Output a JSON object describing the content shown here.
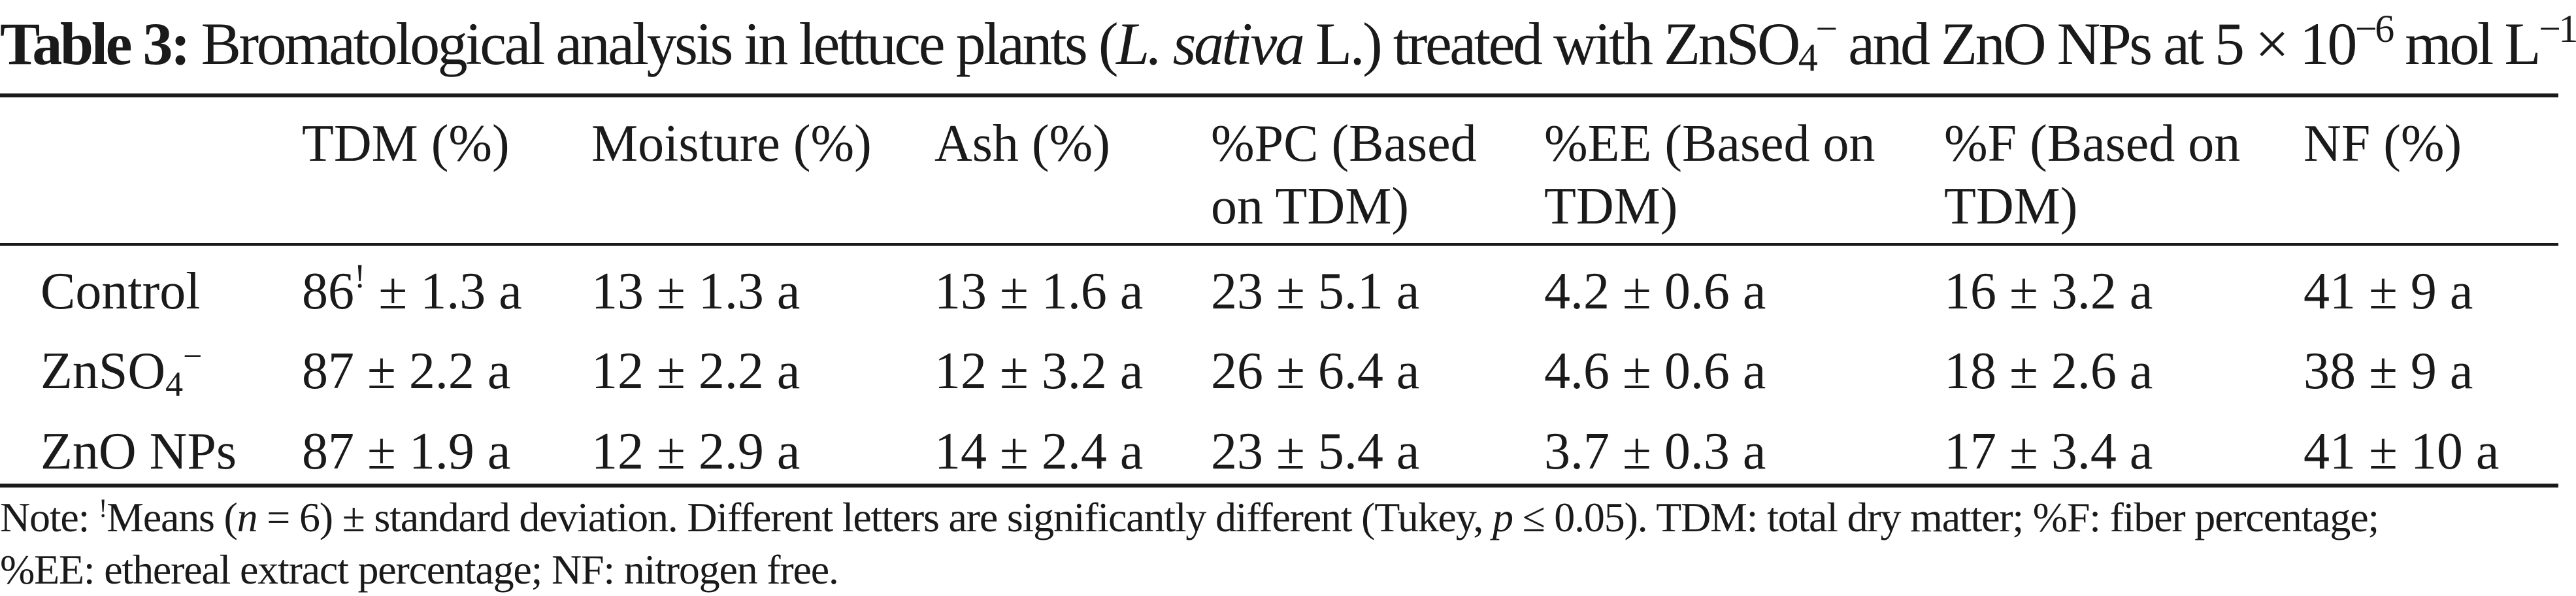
{
  "caption": {
    "label": "Table 3:",
    "text_1": " Bromatological analysis in lettuce plants (",
    "species": "L. sativa",
    "text_2": " L.) treated with ZnSO",
    "sub": "4",
    "sup_charge": "−",
    "text_3": " and ZnO NPs at 5 × 10",
    "sup_exp": "−6",
    "text_4": " mol L",
    "sup_unit": "−1"
  },
  "header": {
    "cols": [
      {
        "line1": "TDM (%)",
        "line2": ""
      },
      {
        "line1": "Moisture (%)",
        "line2": ""
      },
      {
        "line1": "Ash (%)",
        "line2": ""
      },
      {
        "line1": "%PC (Based",
        "line2": "on TDM)"
      },
      {
        "line1": "%EE (Based on",
        "line2": "TDM)"
      },
      {
        "line1": "%F (Based on",
        "line2": "TDM)"
      },
      {
        "line1": "NF (%)",
        "line2": ""
      }
    ]
  },
  "rows": [
    {
      "treatment": "Control",
      "treatment_sub": "",
      "treatment_sup": "",
      "tdm_value": "86",
      "tdm_marker": "!",
      "tdm_rest": " ± 1.3 a",
      "moisture": "13 ± 1.3 a",
      "ash": "13 ± 1.6 a",
      "pc": "23 ± 5.1 a",
      "ee": "4.2 ± 0.6 a",
      "f": "16 ± 3.2 a",
      "nf": "41 ± 9 a"
    },
    {
      "treatment": "ZnSO",
      "treatment_sub": "4",
      "treatment_sup": "−",
      "tdm_value": "87 ± 2.2 a",
      "tdm_marker": "",
      "tdm_rest": "",
      "moisture": "12 ± 2.2 a",
      "ash": "12 ± 3.2 a",
      "pc": "26 ± 6.4 a",
      "ee": "4.6 ± 0.6 a",
      "f": "18 ± 2.6 a",
      "nf": "38 ± 9 a"
    },
    {
      "treatment": "ZnO NPs",
      "treatment_sub": "",
      "treatment_sup": "",
      "tdm_value": "87 ± 1.9 a",
      "tdm_marker": "",
      "tdm_rest": "",
      "moisture": "12 ± 2.9 a",
      "ash": "14 ± 2.4 a",
      "pc": "23 ± 5.4 a",
      "ee": "3.7 ± 0.3 a",
      "f": "17 ± 3.4 a",
      "nf": "41 ± 10 a"
    }
  ],
  "note": {
    "prefix": "Note: ",
    "marker": "!",
    "text_1": "Means (",
    "n_var": "n",
    "text_2": " = 6) ± standard deviation. Different letters are significantly different (Tukey, ",
    "p_var": "p",
    "text_3": " ≤ 0.05). TDM: total dry matter; %F: fiber percentage;",
    "line2": "%EE: ethereal extract percentage; NF: nitrogen free."
  }
}
